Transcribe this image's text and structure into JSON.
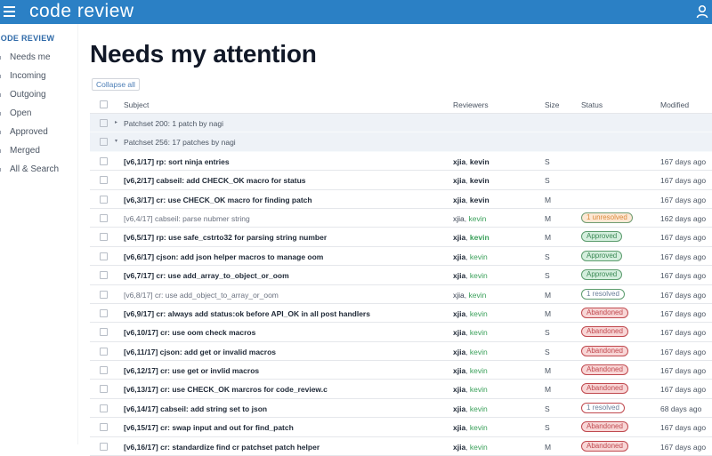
{
  "app": {
    "title": "code review",
    "menu_icon": "hamburger-icon",
    "user_icon": "user-icon"
  },
  "sidebar": {
    "section_title": "CODE REVIEW",
    "items": [
      {
        "label": "Needs me"
      },
      {
        "label": "Incoming"
      },
      {
        "label": "Outgoing"
      },
      {
        "label": "Open"
      },
      {
        "label": "Approved"
      },
      {
        "label": "Merged"
      },
      {
        "label": "All & Search"
      }
    ]
  },
  "main": {
    "title": "Needs my attention",
    "collapse_all_label": "Collapse all",
    "columns": {
      "subject": "Subject",
      "reviewers": "Reviewers",
      "size": "Size",
      "status": "Status",
      "modified": "Modified"
    },
    "groups": [
      {
        "label": "Patchset 200: 1 patch by nagi",
        "expanded": false,
        "caret": "▸"
      },
      {
        "label": "Patchset 256: 17 patches by nagi",
        "expanded": true,
        "caret": "▾"
      }
    ],
    "rows": [
      {
        "subject": "[v6,1/17] rp: sort ninja entries",
        "bold": true,
        "rev_a": "xjia",
        "rev_b": "kevin",
        "rev_b_style": "dark",
        "size": "S",
        "status": "",
        "status_type": "",
        "modified": "167 days ago"
      },
      {
        "subject": "[v6,2/17] cabseil: add CHECK_OK macro for status",
        "bold": true,
        "rev_a": "xjia",
        "rev_b": "kevin",
        "rev_b_style": "dark",
        "size": "S",
        "status": "",
        "status_type": "",
        "modified": "167 days ago"
      },
      {
        "subject": "[v6,3/17] cr: use CHECK_OK macro for finding patch",
        "bold": true,
        "rev_a": "xjia",
        "rev_b": "kevin",
        "rev_b_style": "dark",
        "size": "M",
        "status": "",
        "status_type": "",
        "modified": "167 days ago"
      },
      {
        "subject": "[v6,4/17] cabseil: parse nubmer string",
        "bold": false,
        "rev_a": "xjia",
        "rev_b": "kevin",
        "rev_b_style": "green",
        "size": "M",
        "status": "1 unresolved",
        "status_type": "unresolved",
        "modified": "162 days ago"
      },
      {
        "subject": "[v6,5/17] rp: use safe_cstrto32 for parsing string number",
        "bold": true,
        "rev_a": "xjia",
        "rev_b": "kevin",
        "rev_b_style": "green-bold",
        "size": "M",
        "status": "Approved",
        "status_type": "approved",
        "modified": "167 days ago"
      },
      {
        "subject": "[v6,6/17] cjson: add json helper macros to manage oom",
        "bold": true,
        "rev_a": "xjia",
        "rev_b": "kevin",
        "rev_b_style": "green",
        "size": "S",
        "status": "Approved",
        "status_type": "approved",
        "modified": "167 days ago"
      },
      {
        "subject": "[v6,7/17] cr: use add_array_to_object_or_oom",
        "bold": true,
        "rev_a": "xjia",
        "rev_b": "kevin",
        "rev_b_style": "green",
        "size": "S",
        "status": "Approved",
        "status_type": "approved",
        "modified": "167 days ago"
      },
      {
        "subject": "[v6,8/17] cr: use add_object_to_array_or_oom",
        "bold": false,
        "rev_a": "xjia",
        "rev_b": "kevin",
        "rev_b_style": "green",
        "size": "M",
        "status": "1 resolved",
        "status_type": "resolved",
        "modified": "167 days ago"
      },
      {
        "subject": "[v6,9/17] cr: always add status:ok before API_OK in all post handlers",
        "bold": true,
        "rev_a": "xjia",
        "rev_b": "kevin",
        "rev_b_style": "green",
        "size": "M",
        "status": "Abandoned",
        "status_type": "abandoned",
        "modified": "167 days ago"
      },
      {
        "subject": "[v6,10/17] cr: use oom check macros",
        "bold": true,
        "rev_a": "xjia",
        "rev_b": "kevin",
        "rev_b_style": "green",
        "size": "S",
        "status": "Abandoned",
        "status_type": "abandoned",
        "modified": "167 days ago"
      },
      {
        "subject": "[v6,11/17] cjson: add get or invalid macros",
        "bold": true,
        "rev_a": "xjia",
        "rev_b": "kevin",
        "rev_b_style": "green",
        "size": "S",
        "status": "Abandoned",
        "status_type": "abandoned",
        "modified": "167 days ago"
      },
      {
        "subject": "[v6,12/17] cr: use get or invlid macros",
        "bold": true,
        "rev_a": "xjia",
        "rev_b": "kevin",
        "rev_b_style": "green",
        "size": "M",
        "status": "Abandoned",
        "status_type": "abandoned",
        "modified": "167 days ago"
      },
      {
        "subject": "[v6,13/17] cr: use CHECK_OK marcros for code_review.c",
        "bold": true,
        "rev_a": "xjia",
        "rev_b": "kevin",
        "rev_b_style": "green",
        "size": "M",
        "status": "Abandoned",
        "status_type": "abandoned",
        "modified": "167 days ago"
      },
      {
        "subject": "[v6,14/17] cabseil: add string set to json",
        "bold": true,
        "rev_a": "xjia",
        "rev_b": "kevin",
        "rev_b_style": "green",
        "size": "S",
        "status": "1 resolved",
        "status_type": "resolved-red",
        "modified": "68 days ago"
      },
      {
        "subject": "[v6,15/17] cr: swap input and out for find_patch",
        "bold": true,
        "rev_a": "xjia",
        "rev_b": "kevin",
        "rev_b_style": "green",
        "size": "S",
        "status": "Abandoned",
        "status_type": "abandoned",
        "modified": "167 days ago"
      },
      {
        "subject": "[v6,16/17] cr: standardize find cr patchset patch helper",
        "bold": true,
        "rev_a": "xjia",
        "rev_b": "kevin",
        "rev_b_style": "green",
        "size": "M",
        "status": "Abandoned",
        "status_type": "abandoned",
        "modified": "167 days ago"
      }
    ]
  },
  "colors": {
    "topbar": "#2b80c5",
    "sidebar_title": "#2f6aa8",
    "reviewer_green": "#3aa05a",
    "approved_bg": "#d4eedd",
    "abandoned_bg": "#f8d6d6",
    "unresolved_bg": "#fde8d4"
  }
}
